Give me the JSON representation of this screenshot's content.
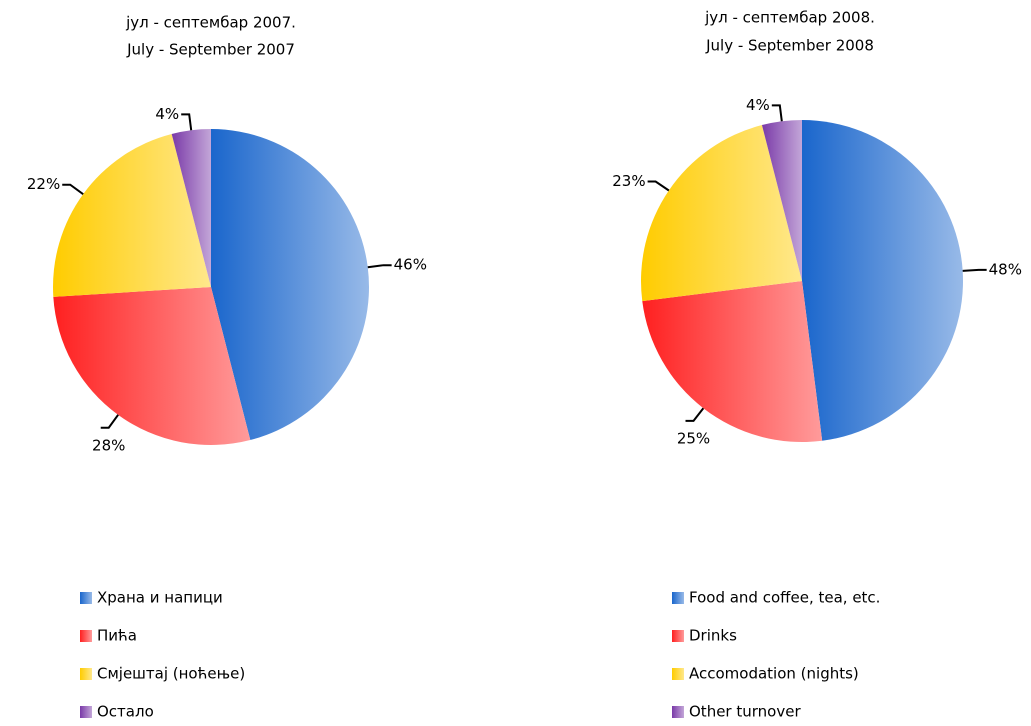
{
  "chart_data": [
    {
      "type": "pie",
      "title": "јул - септембар 2007.",
      "subtitle": "July - September 2007",
      "categories": [
        "Храна и напици",
        "Пића",
        "Смјештај (ноћење)",
        "Остало"
      ],
      "values": [
        46,
        28,
        22,
        4
      ],
      "value_labels": [
        "46%",
        "28%",
        "22%",
        "4%"
      ],
      "colors": [
        "#1a66cc",
        "#ff2020",
        "#ffcc00",
        "#7a3aa8"
      ]
    },
    {
      "type": "pie",
      "title": "јул - септембар 2008.",
      "subtitle": "July - September 2008",
      "categories": [
        "Food and coffee, tea, etc.",
        "Drinks",
        "Accomodation (nights)",
        "Other turnover"
      ],
      "values": [
        48,
        25,
        23,
        4
      ],
      "value_labels": [
        "48%",
        "25%",
        "23%",
        "4%"
      ],
      "colors": [
        "#1a66cc",
        "#ff2020",
        "#ffcc00",
        "#7a3aa8"
      ]
    }
  ]
}
